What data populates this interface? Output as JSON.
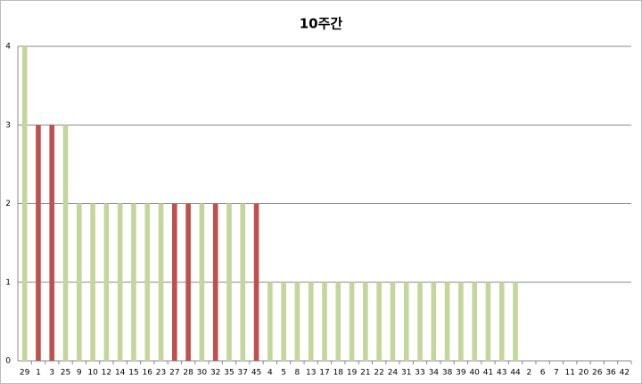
{
  "chart_data": {
    "type": "bar",
    "title": "10주간",
    "categories": [
      "29",
      "1",
      "3",
      "25",
      "9",
      "10",
      "12",
      "14",
      "15",
      "16",
      "23",
      "27",
      "28",
      "30",
      "32",
      "35",
      "37",
      "45",
      "4",
      "5",
      "8",
      "13",
      "17",
      "18",
      "19",
      "21",
      "22",
      "24",
      "31",
      "33",
      "34",
      "38",
      "39",
      "40",
      "41",
      "43",
      "44",
      "2",
      "6",
      "7",
      "11",
      "20",
      "26",
      "36",
      "42"
    ],
    "values": [
      4,
      3,
      3,
      3,
      2,
      2,
      2,
      2,
      2,
      2,
      2,
      2,
      2,
      2,
      2,
      2,
      2,
      2,
      1,
      1,
      1,
      1,
      1,
      1,
      1,
      1,
      1,
      1,
      1,
      1,
      1,
      1,
      1,
      1,
      1,
      1,
      1,
      0,
      0,
      0,
      0,
      0,
      0,
      0,
      0
    ],
    "colors": [
      "#c3d69b",
      "#c0504d",
      "#c0504d",
      "#c3d69b",
      "#c3d69b",
      "#c3d69b",
      "#c3d69b",
      "#c3d69b",
      "#c3d69b",
      "#c3d69b",
      "#c3d69b",
      "#c0504d",
      "#c0504d",
      "#c3d69b",
      "#c0504d",
      "#c3d69b",
      "#c3d69b",
      "#c0504d",
      "#c3d69b",
      "#c3d69b",
      "#c3d69b",
      "#c3d69b",
      "#c3d69b",
      "#c3d69b",
      "#c3d69b",
      "#c3d69b",
      "#c3d69b",
      "#c3d69b",
      "#c3d69b",
      "#c3d69b",
      "#c3d69b",
      "#c3d69b",
      "#c3d69b",
      "#c3d69b",
      "#c3d69b",
      "#c3d69b",
      "#c3d69b",
      "#c3d69b",
      "#c3d69b",
      "#c3d69b",
      "#c3d69b",
      "#c3d69b",
      "#c3d69b",
      "#c3d69b",
      "#c3d69b"
    ],
    "ylim": [
      0,
      4
    ],
    "yticks": [
      0,
      1,
      2,
      3,
      4
    ],
    "grid": true
  }
}
